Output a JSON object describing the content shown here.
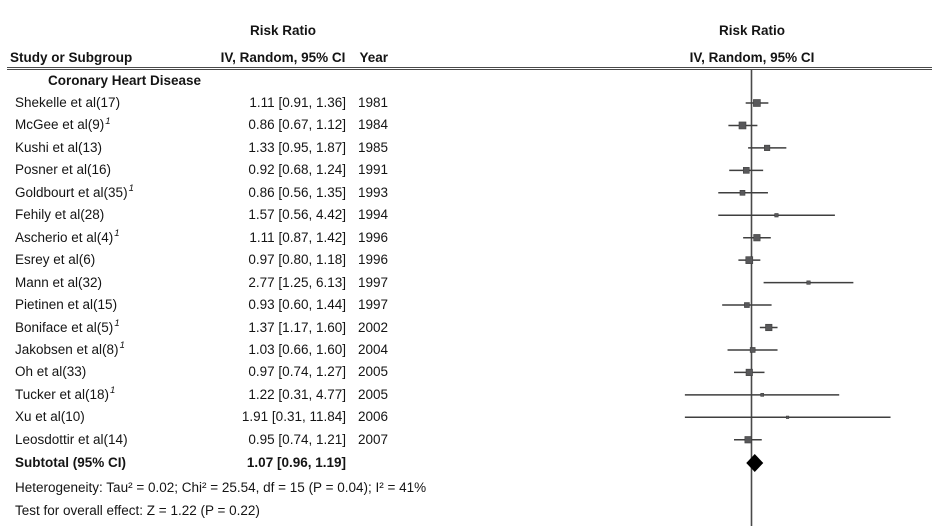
{
  "header": {
    "study_col": "Study or Subgroup",
    "effect_col_line1": "Risk Ratio",
    "effect_col_line2": "IV, Random, 95% CI",
    "year_col": "Year",
    "plot_col_line1": "Risk Ratio",
    "plot_col_line2": "IV, Random, 95% CI"
  },
  "chart_data": {
    "type": "scatter",
    "subtype": "forest-plot-meta-analysis",
    "effect_measure": "Risk Ratio",
    "method": "IV, Random, 95% CI",
    "x_scale": "log",
    "null_line_value": 1,
    "subgroup_label": "Coronary Heart Disease",
    "studies": [
      {
        "name": "Shekelle et al(17)",
        "footnote_marker": "",
        "estimate_label": "1.11 [0.91, 1.36]",
        "year": "1981",
        "rr": 1.11,
        "ci_low": 0.91,
        "ci_high": 1.36,
        "marker_size": 7
      },
      {
        "name": "McGee et al(9)",
        "footnote_marker": "1",
        "estimate_label": "0.86 [0.67, 1.12]",
        "year": "1984",
        "rr": 0.86,
        "ci_low": 0.67,
        "ci_high": 1.12,
        "marker_size": 7
      },
      {
        "name": "Kushi et al(13)",
        "footnote_marker": "",
        "estimate_label": "1.33 [0.95, 1.87]",
        "year": "1985",
        "rr": 1.33,
        "ci_low": 0.95,
        "ci_high": 1.87,
        "marker_size": 5.5
      },
      {
        "name": "Posner et al(16)",
        "footnote_marker": "",
        "estimate_label": "0.92 [0.68, 1.24]",
        "year": "1991",
        "rr": 0.92,
        "ci_low": 0.68,
        "ci_high": 1.24,
        "marker_size": 6
      },
      {
        "name": "Goldbourt et al(35)",
        "footnote_marker": "1",
        "estimate_label": "0.86 [0.56, 1.35]",
        "year": "1993",
        "rr": 0.86,
        "ci_low": 0.56,
        "ci_high": 1.35,
        "marker_size": 5
      },
      {
        "name": "Fehily et al(28)",
        "footnote_marker": "",
        "estimate_label": "1.57 [0.56, 4.42]",
        "year": "1994",
        "rr": 1.57,
        "ci_low": 0.56,
        "ci_high": 4.42,
        "marker_size": 3.5
      },
      {
        "name": "Ascherio et al(4)",
        "footnote_marker": "1",
        "estimate_label": "1.11 [0.87, 1.42]",
        "year": "1996",
        "rr": 1.11,
        "ci_low": 0.87,
        "ci_high": 1.42,
        "marker_size": 6.5
      },
      {
        "name": "Esrey et al(6)",
        "footnote_marker": "",
        "estimate_label": "0.97 [0.80, 1.18]",
        "year": "1996",
        "rr": 0.97,
        "ci_low": 0.8,
        "ci_high": 1.18,
        "marker_size": 7
      },
      {
        "name": "Mann et al(32)",
        "footnote_marker": "",
        "estimate_label": "2.77 [1.25, 6.13]",
        "year": "1997",
        "rr": 2.77,
        "ci_low": 1.25,
        "ci_high": 6.13,
        "marker_size": 3.5
      },
      {
        "name": "Pietinen et al(15)",
        "footnote_marker": "",
        "estimate_label": "0.93 [0.60, 1.44]",
        "year": "1997",
        "rr": 0.93,
        "ci_low": 0.6,
        "ci_high": 1.44,
        "marker_size": 5
      },
      {
        "name": "Boniface et al(5)",
        "footnote_marker": "1",
        "estimate_label": "1.37 [1.17, 1.60]",
        "year": "2002",
        "rr": 1.37,
        "ci_low": 1.17,
        "ci_high": 1.6,
        "marker_size": 6.5
      },
      {
        "name": "Jakobsen et al(8)",
        "footnote_marker": "1",
        "estimate_label": "1.03 [0.66, 1.60]",
        "year": "2004",
        "rr": 1.03,
        "ci_low": 0.66,
        "ci_high": 1.6,
        "marker_size": 5
      },
      {
        "name": "Oh et al(33)",
        "footnote_marker": "",
        "estimate_label": "0.97 [0.74, 1.27]",
        "year": "2005",
        "rr": 0.97,
        "ci_low": 0.74,
        "ci_high": 1.27,
        "marker_size": 6.5
      },
      {
        "name": "Tucker et al(18)",
        "footnote_marker": "1",
        "estimate_label": "1.22 [0.31, 4.77]",
        "year": "2005",
        "rr": 1.22,
        "ci_low": 0.31,
        "ci_high": 4.77,
        "marker_size": 3
      },
      {
        "name": "Xu et al(10)",
        "footnote_marker": "",
        "estimate_label": "1.91 [0.31, 11.84]",
        "year": "2006",
        "rr": 1.91,
        "ci_low": 0.31,
        "ci_high": 11.84,
        "marker_size": 2.5
      },
      {
        "name": "Leosdottir et al(14)",
        "footnote_marker": "",
        "estimate_label": "0.95 [0.74, 1.21]",
        "year": "2007",
        "rr": 0.95,
        "ci_low": 0.74,
        "ci_high": 1.21,
        "marker_size": 6.5
      }
    ],
    "subtotal": {
      "label": "Subtotal (95% CI)",
      "estimate_label": "1.07 [0.96, 1.19]",
      "rr": 1.07,
      "ci_low": 0.96,
      "ci_high": 1.19
    },
    "footnotes": {
      "heterogeneity": "Heterogeneity: Tau² = 0.02; Chi² = 25.54, df = 15 (P = 0.04); I² = 41%",
      "overall_effect": "Test for overall effect: Z = 1.22 (P = 0.22)"
    }
  },
  "colors": {
    "text": "#141414",
    "axis_line": "#4a4a4a",
    "ci_line": "#3f3f3f",
    "marker": "#58585a",
    "diamond": "#000000"
  }
}
